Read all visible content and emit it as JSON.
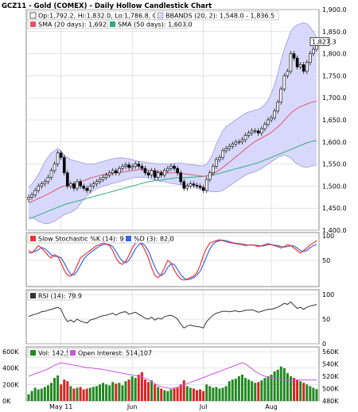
{
  "title": "GCZ11 - Gold (COMEX) - Daily Hollow Candlestick Chart",
  "colors": {
    "bbands_fill": "#d8d8fc",
    "bbands_line": "#9999dd",
    "sma20": "#e05566",
    "sma50": "#33aa77",
    "stoch_k": "#ee3333",
    "stoch_d": "#3366ee",
    "rsi": "#333333",
    "vol_up": "#228822",
    "vol_down": "#dd2222",
    "oi": "#cc55dd",
    "legend_bg": "#ffffff",
    "border": "#888888",
    "grid": "#c8c8c8"
  },
  "legends": {
    "price": {
      "ohlc": "Op:1,792.2, Hi:1,832.0, Lo:1,786.8, Cl:1,827.3",
      "bbands": "BBANDS (20, 2): 1,548.0 - 1,836.5",
      "sma20": "SMA (20 days): 1,692.2",
      "sma50": "SMA (50 days): 1,603.0"
    },
    "stoch": {
      "k": "Slow Stochastic %K (14): 90.4",
      "d": "%D (3): 82.0"
    },
    "rsi": "RSI (14): 79.9",
    "volume": {
      "vol": "Vol: 142,555",
      "oi": "Open Interest: 514,107"
    }
  },
  "last_price_label": "1,827.3",
  "chart_data": {
    "type": "candlestick",
    "x_tick_labels": [
      {
        "index": 10,
        "label": "May 11"
      },
      {
        "index": 32,
        "label": "Jun"
      },
      {
        "index": 54,
        "label": "Jul"
      },
      {
        "index": 75,
        "label": "Aug"
      }
    ],
    "price_axis": {
      "min": 1400,
      "max": 1900,
      "ticks": [
        "1,400.0",
        "1,450.0",
        "1,500.0",
        "1,550.0",
        "1,600.0",
        "1,650.0",
        "1,700.0",
        "1,750.0",
        "1,800.0",
        "1,850.0",
        "1,900.0"
      ]
    },
    "stoch_axis": {
      "min": 0,
      "max": 100,
      "ticks": [
        "50",
        "100"
      ]
    },
    "rsi_axis": {
      "min": 0,
      "max": 100,
      "ticks": [
        "0",
        "50",
        "100"
      ]
    },
    "volume_axis": {
      "min": 0,
      "max": 600000,
      "ticks": [
        "0K",
        "200K",
        "400K",
        "600K"
      ]
    },
    "oi_axis": {
      "min": 480000,
      "max": 560000,
      "ticks": [
        "480K",
        "500K",
        "520K",
        "540K",
        "560K"
      ]
    },
    "close": [
      1475,
      1480,
      1490,
      1500,
      1505,
      1510,
      1520,
      1535,
      1550,
      1575,
      1565,
      1530,
      1500,
      1505,
      1495,
      1510,
      1500,
      1495,
      1490,
      1500,
      1505,
      1510,
      1515,
      1520,
      1525,
      1530,
      1535,
      1530,
      1540,
      1545,
      1548,
      1542,
      1545,
      1550,
      1545,
      1540,
      1530,
      1525,
      1535,
      1520,
      1530,
      1525,
      1535,
      1540,
      1545,
      1540,
      1530,
      1510,
      1495,
      1500,
      1505,
      1502,
      1500,
      1497,
      1490,
      1515,
      1530,
      1545,
      1560,
      1565,
      1580,
      1585,
      1590,
      1595,
      1600,
      1600,
      1605,
      1615,
      1620,
      1625,
      1625,
      1620,
      1630,
      1640,
      1650,
      1655,
      1670,
      1690,
      1720,
      1750,
      1760,
      1800,
      1790,
      1770,
      1775,
      1760,
      1780,
      1800,
      1810,
      1827.3
    ],
    "sma20": [
      1462,
      1465,
      1468,
      1472,
      1475,
      1478,
      1482,
      1486,
      1490,
      1494,
      1498,
      1500,
      1502,
      1504,
      1506,
      1508,
      1510,
      1512,
      1515,
      1518,
      1520,
      1522,
      1524,
      1526,
      1527,
      1528,
      1529,
      1530,
      1531,
      1532,
      1533,
      1534,
      1535,
      1536,
      1537,
      1537,
      1537,
      1536,
      1535,
      1534,
      1533,
      1532,
      1531,
      1530,
      1530,
      1530,
      1530,
      1529,
      1528,
      1527,
      1526,
      1525,
      1524,
      1523,
      1522,
      1523,
      1525,
      1528,
      1532,
      1537,
      1542,
      1548,
      1554,
      1560,
      1566,
      1572,
      1578,
      1584,
      1590,
      1596,
      1601,
      1605,
      1609,
      1613,
      1617,
      1622,
      1628,
      1634,
      1641,
      1649,
      1657,
      1665,
      1671,
      1676,
      1680,
      1683,
      1686,
      1689,
      1691,
      1692.2
    ],
    "sma50": [
      1425,
      1428,
      1431,
      1434,
      1437,
      1440,
      1443,
      1446,
      1449,
      1452,
      1455,
      1458,
      1460,
      1462,
      1464,
      1466,
      1468,
      1470,
      1472,
      1474,
      1476,
      1478,
      1480,
      1482,
      1484,
      1486,
      1488,
      1490,
      1492,
      1494,
      1496,
      1498,
      1500,
      1502,
      1504,
      1506,
      1508,
      1510,
      1511,
      1512,
      1513,
      1514,
      1515,
      1516,
      1517,
      1518,
      1519,
      1519,
      1519,
      1519,
      1520,
      1520,
      1521,
      1521,
      1522,
      1523,
      1524,
      1525,
      1527,
      1529,
      1531,
      1533,
      1535,
      1537,
      1539,
      1541,
      1543,
      1545,
      1547,
      1549,
      1551,
      1553,
      1556,
      1559,
      1562,
      1565,
      1568,
      1571,
      1574,
      1577,
      1580,
      1583,
      1586,
      1589,
      1592,
      1595,
      1598,
      1600,
      1602,
      1603.0
    ],
    "bb_upper": [
      1495,
      1505,
      1515,
      1525,
      1540,
      1555,
      1565,
      1575,
      1580,
      1585,
      1580,
      1570,
      1565,
      1560,
      1558,
      1556,
      1554,
      1552,
      1550,
      1550,
      1550,
      1552,
      1554,
      1556,
      1558,
      1560,
      1562,
      1563,
      1564,
      1564,
      1563,
      1562,
      1560,
      1558,
      1556,
      1555,
      1554,
      1553,
      1552,
      1551,
      1550,
      1550,
      1550,
      1550,
      1550,
      1551,
      1552,
      1552,
      1551,
      1550,
      1549,
      1548,
      1547,
      1546,
      1546,
      1550,
      1560,
      1575,
      1595,
      1610,
      1625,
      1635,
      1640,
      1645,
      1650,
      1655,
      1660,
      1665,
      1668,
      1670,
      1672,
      1674,
      1678,
      1685,
      1695,
      1710,
      1730,
      1755,
      1785,
      1810,
      1830,
      1850,
      1860,
      1865,
      1868,
      1870,
      1868,
      1860,
      1850,
      1836.5
    ],
    "bb_lower": [
      1430,
      1428,
      1425,
      1420,
      1418,
      1415,
      1415,
      1418,
      1420,
      1425,
      1430,
      1435,
      1438,
      1440,
      1445,
      1450,
      1460,
      1470,
      1478,
      1485,
      1490,
      1494,
      1497,
      1500,
      1502,
      1504,
      1506,
      1508,
      1510,
      1512,
      1514,
      1516,
      1518,
      1520,
      1520,
      1520,
      1520,
      1518,
      1516,
      1514,
      1512,
      1510,
      1510,
      1508,
      1506,
      1505,
      1504,
      1503,
      1502,
      1502,
      1500,
      1498,
      1496,
      1494,
      1492,
      1490,
      1488,
      1487,
      1487,
      1488,
      1490,
      1495,
      1500,
      1505,
      1510,
      1515,
      1520,
      1525,
      1528,
      1530,
      1533,
      1536,
      1540,
      1545,
      1550,
      1555,
      1560,
      1565,
      1568,
      1570,
      1568,
      1564,
      1556,
      1550,
      1546,
      1543,
      1542,
      1544,
      1546,
      1548.0
    ],
    "stoch_k": [
      70,
      65,
      72,
      80,
      75,
      68,
      60,
      55,
      62,
      58,
      45,
      30,
      20,
      18,
      25,
      40,
      55,
      60,
      65,
      70,
      75,
      80,
      82,
      85,
      83,
      80,
      70,
      55,
      45,
      42,
      48,
      60,
      75,
      85,
      88,
      82,
      70,
      55,
      35,
      20,
      15,
      22,
      35,
      50,
      45,
      30,
      20,
      12,
      10,
      12,
      15,
      18,
      25,
      40,
      60,
      75,
      85,
      88,
      90,
      92,
      90,
      88,
      86,
      85,
      84,
      83,
      82,
      80,
      81,
      82,
      80,
      78,
      80,
      82,
      84,
      82,
      80,
      78,
      75,
      78,
      82,
      80,
      75,
      70,
      65,
      70,
      75,
      82,
      85,
      90.4
    ],
    "stoch_d": [
      65,
      66,
      68,
      72,
      76,
      74,
      68,
      61,
      58,
      58,
      55,
      45,
      32,
      22,
      20,
      28,
      40,
      52,
      60,
      65,
      70,
      75,
      79,
      82,
      83,
      82,
      78,
      68,
      57,
      48,
      45,
      50,
      61,
      73,
      82,
      85,
      80,
      69,
      53,
      37,
      24,
      19,
      24,
      36,
      43,
      42,
      32,
      21,
      14,
      11,
      12,
      15,
      20,
      28,
      42,
      58,
      73,
      83,
      88,
      90,
      91,
      90,
      88,
      86,
      85,
      84,
      83,
      82,
      81,
      81,
      81,
      80,
      79,
      80,
      82,
      82,
      81,
      80,
      78,
      77,
      78,
      80,
      79,
      75,
      70,
      68,
      70,
      76,
      80,
      82.0
    ],
    "rsi": [
      55,
      58,
      60,
      62,
      65,
      66,
      68,
      70,
      72,
      74,
      70,
      55,
      45,
      48,
      44,
      50,
      46,
      44,
      42,
      48,
      50,
      52,
      55,
      57,
      58,
      60,
      62,
      58,
      62,
      64,
      65,
      60,
      62,
      64,
      60,
      56,
      52,
      50,
      54,
      48,
      52,
      50,
      55,
      57,
      58,
      55,
      50,
      40,
      32,
      36,
      38,
      36,
      35,
      34,
      32,
      45,
      52,
      58,
      62,
      64,
      66,
      66,
      65,
      66,
      67,
      65,
      66,
      68,
      68,
      69,
      67,
      64,
      66,
      68,
      70,
      70,
      72,
      74,
      78,
      82,
      80,
      85,
      78,
      72,
      74,
      70,
      74,
      77,
      78,
      79.9
    ],
    "volume": [
      80,
      120,
      160,
      140,
      150,
      170,
      190,
      220,
      280,
      310,
      200,
      260,
      240,
      180,
      150,
      160,
      170,
      140,
      150,
      160,
      170,
      180,
      200,
      220,
      200,
      190,
      230,
      210,
      220,
      190,
      240,
      260,
      300,
      280,
      320,
      350,
      260,
      230,
      250,
      200,
      170,
      150,
      130,
      120,
      140,
      150,
      160,
      200,
      250,
      180,
      160,
      150,
      130,
      140,
      120,
      200,
      180,
      160,
      170,
      150,
      160,
      180,
      240,
      260,
      270,
      300,
      320,
      280,
      260,
      240,
      220,
      230,
      250,
      280,
      300,
      320,
      360,
      380,
      420,
      400,
      340,
      300,
      280,
      260,
      240,
      220,
      200,
      180,
      160,
      142.555
    ],
    "volume_unit": "thousands",
    "open_interest": [
      520,
      522,
      524,
      526,
      528,
      530,
      532,
      535,
      538,
      540,
      542,
      541,
      540,
      539,
      538,
      537,
      536,
      535,
      534,
      534,
      533,
      532,
      532,
      531,
      530,
      529,
      528,
      527,
      526,
      525,
      524,
      523,
      522,
      521,
      520,
      519,
      517,
      514,
      511,
      508,
      505,
      503,
      502,
      501,
      500,
      501,
      502,
      504,
      506,
      508,
      510,
      512,
      514,
      516,
      518,
      520,
      522,
      524,
      526,
      528,
      530,
      532,
      534,
      536,
      538,
      540,
      542,
      540,
      536,
      532,
      528,
      525,
      522,
      520,
      519,
      518,
      517,
      516,
      515,
      514,
      514,
      513,
      513,
      514,
      514,
      514,
      514,
      514,
      514,
      514.107
    ],
    "oi_unit": "thousands"
  }
}
